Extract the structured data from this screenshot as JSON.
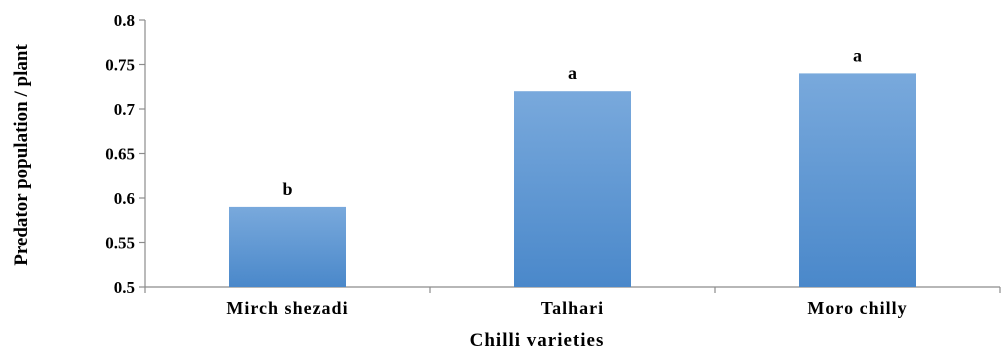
{
  "chart_data": {
    "type": "bar",
    "categories": [
      "Mirch shezadi",
      "Talhari",
      "Moro chilly"
    ],
    "values": [
      0.59,
      0.72,
      0.74
    ],
    "data_labels": [
      "b",
      "a",
      "a"
    ],
    "title": "",
    "xlabel": "Chilli varieties",
    "ylabel": "Predator population / plant",
    "ylim": [
      0.5,
      0.8
    ],
    "yticks": [
      "0.5",
      "0.55",
      "0.6",
      "0.65",
      "0.7",
      "0.75",
      "0.8"
    ],
    "bar_color_top": "#79a9dc",
    "bar_color_bottom": "#4a88ca",
    "grid": false,
    "legend": "none"
  }
}
